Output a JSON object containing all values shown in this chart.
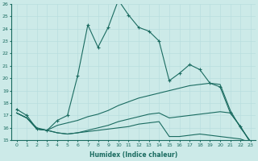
{
  "xlabel": "Humidex (Indice chaleur)",
  "ylabel": "",
  "xlim": [
    -0.5,
    23.5
  ],
  "ylim": [
    15,
    26
  ],
  "xticks": [
    0,
    1,
    2,
    3,
    4,
    5,
    6,
    7,
    8,
    9,
    10,
    11,
    12,
    13,
    14,
    15,
    16,
    17,
    18,
    19,
    20,
    21,
    22,
    23
  ],
  "yticks": [
    15,
    16,
    17,
    18,
    19,
    20,
    21,
    22,
    23,
    24,
    25,
    26
  ],
  "bg_color": "#cceae8",
  "line_color": "#1a6b60",
  "lines": [
    {
      "x": [
        0,
        1,
        2,
        3,
        4,
        5,
        6,
        7,
        8,
        9,
        10,
        11,
        12,
        13,
        14,
        15,
        16,
        17,
        18,
        19,
        20,
        21,
        22,
        23
      ],
      "y": [
        17.5,
        17.0,
        15.9,
        15.8,
        16.6,
        17.0,
        20.2,
        24.3,
        22.5,
        24.1,
        26.3,
        25.1,
        24.1,
        23.8,
        23.0,
        19.8,
        20.4,
        21.1,
        20.7,
        19.6,
        19.3,
        17.2,
        16.1,
        14.8
      ],
      "marker": true
    },
    {
      "x": [
        0,
        1,
        2,
        3,
        4,
        5,
        6,
        7,
        8,
        9,
        10,
        11,
        12,
        13,
        14,
        15,
        16,
        17,
        18,
        19,
        20,
        21,
        22,
        23
      ],
      "y": [
        17.2,
        16.8,
        16.0,
        15.8,
        16.2,
        16.4,
        16.6,
        16.9,
        17.1,
        17.4,
        17.8,
        18.1,
        18.4,
        18.6,
        18.8,
        19.0,
        19.2,
        19.4,
        19.5,
        19.6,
        19.5,
        17.4,
        16.0,
        14.9
      ],
      "marker": false
    },
    {
      "x": [
        0,
        1,
        2,
        3,
        4,
        5,
        6,
        7,
        8,
        9,
        10,
        11,
        12,
        13,
        14,
        15,
        16,
        17,
        18,
        19,
        20,
        21,
        22,
        23
      ],
      "y": [
        17.2,
        16.8,
        15.9,
        15.8,
        15.6,
        15.5,
        15.6,
        15.7,
        15.8,
        15.9,
        16.0,
        16.1,
        16.3,
        16.4,
        16.5,
        15.3,
        15.3,
        15.4,
        15.5,
        15.4,
        15.3,
        15.2,
        15.1,
        14.8
      ],
      "marker": false
    },
    {
      "x": [
        0,
        1,
        2,
        3,
        4,
        5,
        6,
        7,
        8,
        9,
        10,
        11,
        12,
        13,
        14,
        15,
        16,
        17,
        18,
        19,
        20,
        21,
        22,
        23
      ],
      "y": [
        17.2,
        16.8,
        15.9,
        15.8,
        15.6,
        15.5,
        15.6,
        15.8,
        16.0,
        16.2,
        16.5,
        16.7,
        16.9,
        17.1,
        17.2,
        16.8,
        16.9,
        17.0,
        17.1,
        17.2,
        17.3,
        17.2,
        16.1,
        14.8
      ],
      "marker": false
    }
  ]
}
